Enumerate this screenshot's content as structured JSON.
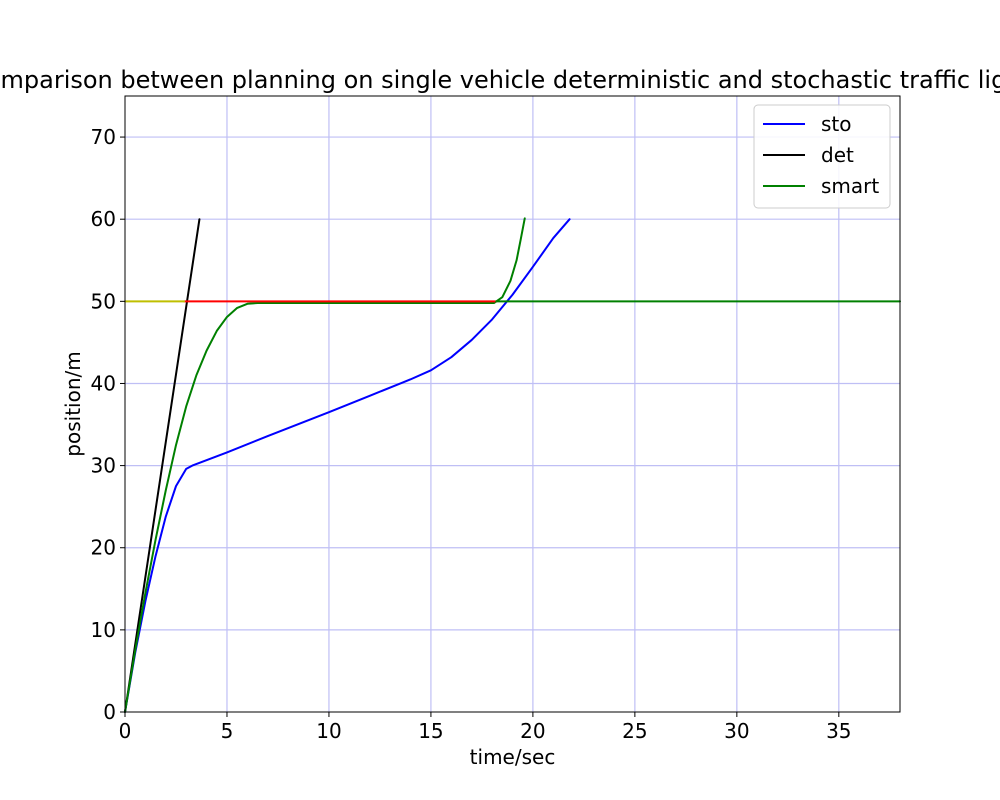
{
  "chart_data": {
    "type": "line",
    "title": "Comparison between planning on single vehicle deterministic and stochastic traffic light",
    "xlabel": "time/sec",
    "ylabel": "position/m",
    "xlim": [
      0,
      38
    ],
    "ylim": [
      0,
      75
    ],
    "xticks": [
      0,
      5,
      10,
      15,
      20,
      25,
      30,
      35
    ],
    "yticks": [
      0,
      10,
      20,
      30,
      40,
      50,
      60,
      70
    ],
    "grid": true,
    "grid_color": "#bfbff5",
    "legend_position": "top-right",
    "series": [
      {
        "name": "sto",
        "color": "#0000ff",
        "in_legend": true,
        "points": [
          [
            0,
            0
          ],
          [
            0.5,
            7.2
          ],
          [
            1,
            13.5
          ],
          [
            1.5,
            19
          ],
          [
            2,
            23.8
          ],
          [
            2.5,
            27.5
          ],
          [
            3,
            29.6
          ],
          [
            3.3,
            30
          ],
          [
            5,
            31.6
          ],
          [
            7,
            33.6
          ],
          [
            10,
            36.5
          ],
          [
            12,
            38.5
          ],
          [
            14,
            40.5
          ],
          [
            15,
            41.6
          ],
          [
            16,
            43.2
          ],
          [
            17,
            45.3
          ],
          [
            18,
            47.8
          ],
          [
            19,
            50.8
          ],
          [
            20,
            54.2
          ],
          [
            21,
            57.7
          ],
          [
            21.8,
            60
          ]
        ]
      },
      {
        "name": "det",
        "color": "#000000",
        "in_legend": true,
        "points": [
          [
            0,
            0
          ],
          [
            3.65,
            60
          ]
        ]
      },
      {
        "name": "smart",
        "color": "#008000",
        "in_legend": true,
        "points": [
          [
            0,
            0
          ],
          [
            0.5,
            7.5
          ],
          [
            1,
            14.5
          ],
          [
            1.5,
            21
          ],
          [
            2,
            27
          ],
          [
            2.5,
            32.5
          ],
          [
            3,
            37.2
          ],
          [
            3.5,
            41
          ],
          [
            4,
            44
          ],
          [
            4.5,
            46.4
          ],
          [
            5,
            48.1
          ],
          [
            5.5,
            49.2
          ],
          [
            6,
            49.7
          ],
          [
            6.5,
            49.8
          ],
          [
            18.1,
            49.8
          ],
          [
            18.5,
            50.5
          ],
          [
            18.9,
            52.5
          ],
          [
            19.2,
            55
          ],
          [
            19.4,
            57.5
          ],
          [
            19.6,
            60.1
          ]
        ]
      },
      {
        "name": "red-light-line",
        "color": "#ff0000",
        "in_legend": false,
        "points": [
          [
            2.9,
            50
          ],
          [
            18.2,
            50
          ]
        ]
      },
      {
        "name": "yellow-light-line",
        "color": "#bfbf00",
        "in_legend": false,
        "points": [
          [
            0,
            50
          ],
          [
            2.9,
            50
          ]
        ]
      },
      {
        "name": "green-light-line",
        "color": "#008000",
        "in_legend": false,
        "points": [
          [
            18.2,
            50
          ],
          [
            38,
            50
          ]
        ]
      }
    ]
  }
}
